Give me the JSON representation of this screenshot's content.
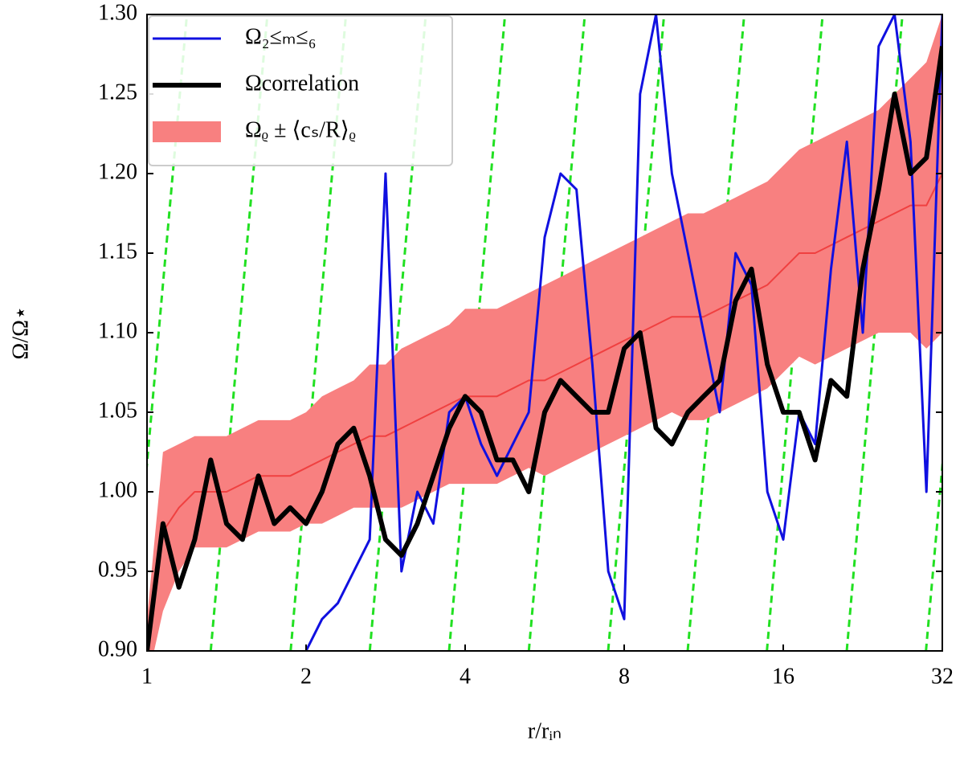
{
  "chart_data": {
    "type": "line",
    "xlabel": "r/rᵢₙ",
    "ylabel": "Ω/Ω⋆",
    "xscale": "log2",
    "xlim": [
      1,
      32
    ],
    "xticks": [
      1,
      2,
      4,
      8,
      16,
      32
    ],
    "ylim": [
      0.9,
      1.3
    ],
    "yticks": [
      {
        "value": 0.9,
        "label": "0.90"
      },
      0.95,
      {
        "value": 1.0,
        "label": "1.00"
      },
      1.05,
      {
        "value": 1.1,
        "label": "1.10"
      },
      1.15,
      {
        "value": 1.2,
        "label": "1.20"
      },
      1.25,
      {
        "value": 1.3,
        "label": "1.30"
      }
    ],
    "legend": "upper left",
    "x": [
      1,
      1.072,
      1.149,
      1.231,
      1.32,
      1.414,
      1.516,
      1.625,
      1.741,
      1.866,
      2,
      2.144,
      2.297,
      2.462,
      2.639,
      2.828,
      3.031,
      3.249,
      3.482,
      3.732,
      4,
      4.287,
      4.595,
      4.925,
      5.278,
      5.657,
      6.063,
      6.498,
      6.964,
      7.464,
      8,
      8.574,
      9.19,
      9.849,
      10.56,
      11.31,
      12.13,
      13,
      13.93,
      14.93,
      16,
      17.15,
      18.38,
      19.7,
      21.11,
      22.63,
      24.25,
      25.99,
      27.86,
      29.86,
      32
    ],
    "series": [
      {
        "name": "Ω₂≤ₘ≤₆",
        "color": "#1010e0",
        "style": "line",
        "width": 3,
        "values": [
          null,
          null,
          null,
          null,
          null,
          null,
          null,
          null,
          null,
          null,
          0.9,
          0.92,
          0.93,
          0.95,
          0.97,
          1.2,
          0.95,
          1.0,
          0.98,
          1.05,
          1.06,
          1.03,
          1.01,
          1.03,
          1.05,
          1.16,
          1.2,
          1.19,
          1.08,
          0.95,
          0.92,
          1.25,
          1.3,
          1.2,
          1.15,
          1.1,
          1.05,
          1.15,
          1.13,
          1.0,
          0.97,
          1.05,
          1.03,
          1.14,
          1.22,
          1.1,
          1.28,
          1.3,
          1.22,
          1.0,
          1.3
        ]
      },
      {
        "name": "Ωcorrelation",
        "color": "#000000",
        "style": "line",
        "width": 6,
        "values": [
          0.9,
          0.98,
          0.94,
          0.97,
          1.02,
          0.98,
          0.97,
          1.01,
          0.98,
          0.99,
          0.98,
          1.0,
          1.03,
          1.04,
          1.01,
          0.97,
          0.96,
          0.98,
          1.01,
          1.04,
          1.06,
          1.05,
          1.02,
          1.02,
          1.0,
          1.05,
          1.07,
          1.06,
          1.05,
          1.05,
          1.09,
          1.1,
          1.04,
          1.03,
          1.05,
          1.06,
          1.07,
          1.12,
          1.14,
          1.08,
          1.05,
          1.05,
          1.02,
          1.07,
          1.06,
          1.14,
          1.19,
          1.25,
          1.2,
          1.21,
          1.28
        ]
      },
      {
        "name": "Ωᵨ ± ⟨cₛ/R⟩ᵨ",
        "color": "#f88080",
        "line_color": "#f04040",
        "style": "band",
        "values": [
          0.9,
          0.975,
          0.99,
          1.0,
          1.0,
          1.0,
          1.005,
          1.01,
          1.01,
          1.01,
          1.015,
          1.02,
          1.025,
          1.03,
          1.035,
          1.035,
          1.04,
          1.045,
          1.05,
          1.055,
          1.06,
          1.06,
          1.06,
          1.065,
          1.07,
          1.07,
          1.075,
          1.08,
          1.085,
          1.09,
          1.095,
          1.1,
          1.105,
          1.11,
          1.11,
          1.11,
          1.115,
          1.12,
          1.125,
          1.13,
          1.14,
          1.15,
          1.15,
          1.155,
          1.16,
          1.165,
          1.17,
          1.175,
          1.18,
          1.18,
          1.2
        ],
        "errors": [
          0.02,
          0.05,
          0.04,
          0.035,
          0.035,
          0.035,
          0.035,
          0.035,
          0.035,
          0.035,
          0.035,
          0.04,
          0.04,
          0.04,
          0.045,
          0.045,
          0.05,
          0.05,
          0.05,
          0.05,
          0.055,
          0.055,
          0.055,
          0.055,
          0.055,
          0.06,
          0.06,
          0.06,
          0.06,
          0.06,
          0.06,
          0.06,
          0.06,
          0.06,
          0.065,
          0.065,
          0.065,
          0.065,
          0.065,
          0.065,
          0.065,
          0.065,
          0.07,
          0.07,
          0.07,
          0.07,
          0.07,
          0.075,
          0.08,
          0.09,
          0.1
        ]
      }
    ],
    "reference_lines": {
      "color": "#22e022",
      "x0": [
        0.93,
        1.32,
        1.87,
        2.64,
        3.73,
        5.28,
        7.46,
        10.55,
        14.9,
        21.1,
        29.8
      ],
      "x1": [
        1.19,
        1.69,
        2.38,
        3.37,
        4.76,
        6.74,
        9.52,
        13.5,
        19.0,
        26.9,
        38.1
      ]
    }
  }
}
